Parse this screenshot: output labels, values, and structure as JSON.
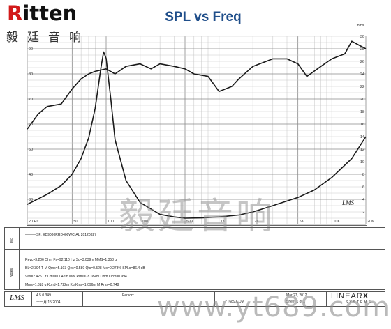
{
  "logo": {
    "word_r": "R",
    "word_rest": "itten",
    "chinese": "毅廷音响"
  },
  "chart_data": {
    "type": "line",
    "title": "SPL vs Freq",
    "x_scale": "log",
    "xlim": [
      20,
      20000
    ],
    "ylim_left": [
      20,
      95
    ],
    "ylim_right": [
      0,
      30
    ],
    "y_right_unit": "Ohms",
    "grid": true,
    "x_tick_labels": [
      "20 Hz",
      "50",
      "100",
      "200",
      "500",
      "1K",
      "2K",
      "5K",
      "10K",
      "20K"
    ],
    "y_left_tick_labels": [
      "90",
      "80",
      "70",
      "60",
      "50",
      "40",
      "30"
    ],
    "y_right_tick_labels": [
      "30",
      "28",
      "26",
      "24",
      "22",
      "20",
      "18",
      "16",
      "14",
      "12",
      "10",
      "8",
      "6",
      "4",
      "2"
    ],
    "series": [
      {
        "axis": "left",
        "x": [
          20,
          25,
          30,
          40,
          50,
          60,
          70,
          80,
          100,
          120,
          150,
          200,
          250,
          300,
          400,
          500,
          600,
          800,
          1000,
          1300,
          1500,
          2000,
          3000,
          4000,
          5000,
          6000,
          8000,
          10000,
          13000,
          15000,
          20000
        ],
        "y": [
          58,
          64,
          67,
          68,
          74,
          78,
          80,
          81,
          82,
          80,
          83,
          84,
          82,
          84,
          83,
          82,
          80,
          79,
          73,
          75,
          78,
          83,
          86,
          86,
          84,
          79,
          83,
          86,
          88,
          93,
          90
        ]
      },
      {
        "axis": "right",
        "x": [
          20,
          30,
          40,
          50,
          60,
          70,
          80,
          90,
          95,
          100,
          110,
          120,
          150,
          200,
          300,
          400,
          500,
          700,
          1000,
          1500,
          2000,
          3000,
          5000,
          7000,
          10000,
          15000,
          20000
        ],
        "y": [
          3.2,
          4.8,
          6.2,
          8.0,
          10.5,
          13.8,
          18.5,
          25.0,
          27.5,
          26.5,
          20.0,
          13.5,
          7.0,
          3.5,
          1.6,
          1.2,
          1.0,
          1.05,
          1.2,
          1.5,
          2.0,
          3.0,
          4.3,
          5.5,
          7.5,
          10.5,
          14.0
        ]
      }
    ]
  },
  "logo_small": "LMS",
  "watermark": "毅廷音响",
  "legend": {
    "label": "Mg",
    "entry": "SF: ED9080RRD400WC-AL 20120327"
  },
  "notes": {
    "label": "Notes",
    "line1": "Revc=3.206 Ohm  Fs=92.110 Hz  Sd=3.039m MMS=1.358 g",
    "line2": "BL=2.394 T·M  Qms=5.103  Qes=0.589  Qts=0.528  Mo=0.273%  SPLo=86.4 dB",
    "line3": "Vas=2.425 Lit  Cms=1.042m M/N  Rms=78.084m Ohm  Ocm=0.994",
    "line4": "Mms=1.818 g  Kbnd=1.722m Kg  Kms=1.096m M  Rms=0.748"
  },
  "footer": {
    "lms": "LMS",
    "version": "4.5.0.349",
    "date_cn": "十一月 15 2004",
    "person_label": "Person:",
    "company": "YT689.COM",
    "date_label": "Mar 27, 2012",
    "sheet": "Sheet 1 of 1",
    "brand": "LINEAR",
    "brand_x": "X",
    "brand_sub": "SYSTEMS"
  },
  "url_watermark": "www.yt689.com"
}
